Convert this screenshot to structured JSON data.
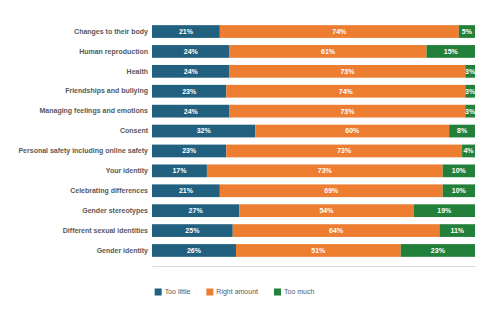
{
  "chart_data": {
    "type": "bar",
    "orientation": "horizontal",
    "stacked": true,
    "data_labels": true,
    "legend": "bottom",
    "tick_labels": "y",
    "grid": false,
    "categories": [
      "Changes to their body",
      "Human reproduction",
      "Health",
      "Friendships and bullying",
      "Managing feelings and emotions",
      "Consent",
      "Personal safety including online safety",
      "Your identity",
      "Celebrating differences",
      "Gender stereotypes",
      "Different sexual identities",
      "Gender identity"
    ],
    "xlim": [
      0,
      100
    ],
    "xticks": [],
    "series": [
      {
        "name": "Too little",
        "color": "#22607f",
        "values": [
          21,
          24,
          24,
          23,
          24,
          32,
          23,
          17,
          21,
          27,
          25,
          26
        ],
        "value_labels": [
          "21%",
          "24%",
          "24%",
          "23%",
          "24%",
          "32%",
          "23%",
          "17%",
          "21%",
          "27%",
          "25%",
          "26%"
        ]
      },
      {
        "name": "Right amount",
        "color": "#ed7d31",
        "values": [
          74,
          61,
          73,
          74,
          73,
          60,
          73,
          73,
          69,
          54,
          64,
          51
        ],
        "value_labels": [
          "74%",
          "61%",
          "73%",
          "74%",
          "73%",
          "60%",
          "73%",
          "73%",
          "69%",
          "54%",
          "64%",
          "51%"
        ]
      },
      {
        "name": "Too much",
        "color": "#23803a",
        "values": [
          5,
          15,
          3,
          3,
          3,
          8,
          4,
          10,
          10,
          19,
          11,
          23
        ],
        "value_labels": [
          "5%",
          "15%",
          "3%",
          "3%",
          "3%",
          "8%",
          "4%",
          "10%",
          "10%",
          "19%",
          "11%",
          "23%"
        ]
      }
    ]
  }
}
